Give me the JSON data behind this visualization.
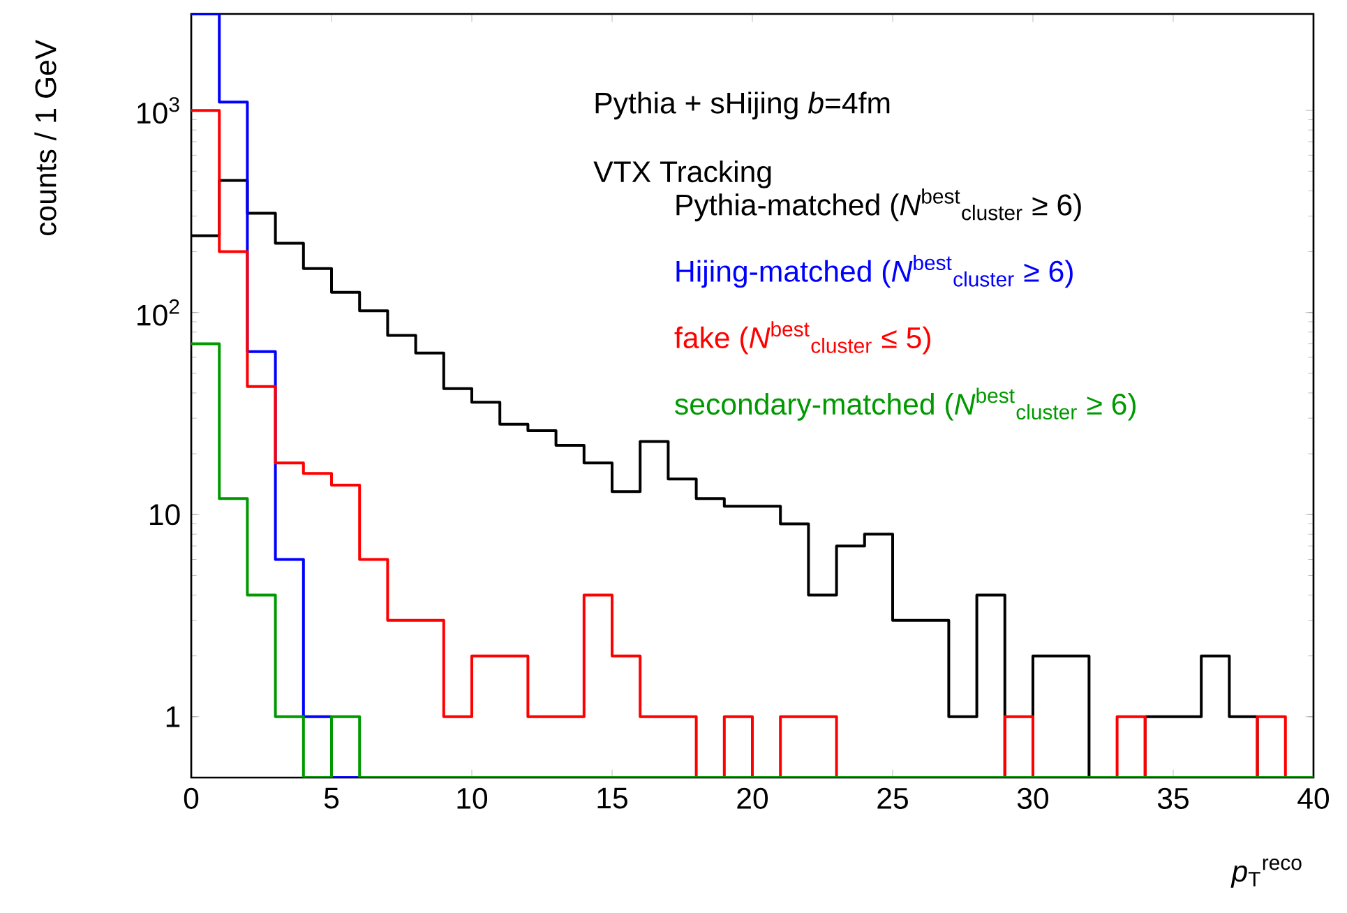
{
  "chart_data": {
    "type": "histogram",
    "xlabel": "*p*$_{T}$$^{reco}$",
    "ylabel": "counts / 1 GeV",
    "annotations": [
      "Pythia + sHijing *b*=4fm",
      "VTX Tracking"
    ],
    "bins": [
      0,
      1,
      2,
      3,
      4,
      5,
      6,
      7,
      8,
      9,
      10,
      11,
      12,
      13,
      14,
      15,
      16,
      17,
      18,
      19,
      20,
      21,
      22,
      23,
      24,
      25,
      26,
      27,
      28,
      29,
      30,
      31,
      32,
      33,
      34,
      35,
      36,
      37,
      38,
      39,
      40
    ],
    "series": [
      {
        "name": "Pythia-matched (*N*$^{best}$$_{cluster}$ ≥ 6)",
        "color": "#000000",
        "values": [
          240,
          450,
          310,
          220,
          165,
          126,
          102,
          77,
          63,
          42,
          36,
          28,
          26,
          22,
          18,
          13,
          23,
          15,
          12,
          11,
          11,
          9,
          4,
          7,
          8,
          3,
          3,
          1,
          4,
          null,
          2,
          2,
          null,
          null,
          1,
          1,
          2,
          1,
          null,
          null
        ]
      },
      {
        "name": "Hijing-matched (*N*$^{best}$$_{cluster}$ ≥ 6)",
        "color": "#0000ff",
        "values": [
          3000,
          1100,
          64,
          6,
          1,
          null,
          null,
          null,
          null,
          null,
          null,
          null,
          null,
          null,
          null,
          null,
          null,
          null,
          null,
          null,
          null,
          null,
          null,
          null,
          null,
          null,
          null,
          null,
          null,
          null,
          null,
          null,
          null,
          null,
          null,
          null,
          null,
          null,
          null,
          null
        ]
      },
      {
        "name": "fake (*N*$^{best}$$_{cluster}$ ≤ 5)",
        "color": "#ff0000",
        "values": [
          1000,
          200,
          43,
          18,
          16,
          14,
          6,
          3,
          3,
          1,
          2,
          2,
          1,
          1,
          4,
          2,
          1,
          1,
          null,
          1,
          null,
          1,
          1,
          null,
          null,
          null,
          null,
          null,
          null,
          1,
          null,
          null,
          null,
          1,
          null,
          null,
          null,
          null,
          1,
          null
        ]
      },
      {
        "name": "secondary-matched (*N*$^{best}$$_{cluster}$ ≥ 6)",
        "color": "#009900",
        "values": [
          70,
          12,
          4,
          1,
          null,
          1,
          null,
          null,
          null,
          null,
          null,
          null,
          null,
          null,
          null,
          null,
          null,
          null,
          null,
          null,
          null,
          null,
          null,
          null,
          null,
          null,
          null,
          null,
          null,
          null,
          null,
          null,
          null,
          null,
          null,
          null,
          null,
          null,
          null,
          null
        ]
      }
    ],
    "xlim": [
      0,
      40
    ],
    "ylim": [
      0.5,
      3000
    ],
    "xticks": [
      0,
      5,
      10,
      15,
      20,
      25,
      30,
      35,
      40
    ],
    "yticks": [
      1,
      10,
      {
        "value": 100,
        "label": "10$^{2}$"
      },
      {
        "value": 1000,
        "label": "10$^{3}$"
      }
    ],
    "log": "y",
    "legend": "top right"
  }
}
